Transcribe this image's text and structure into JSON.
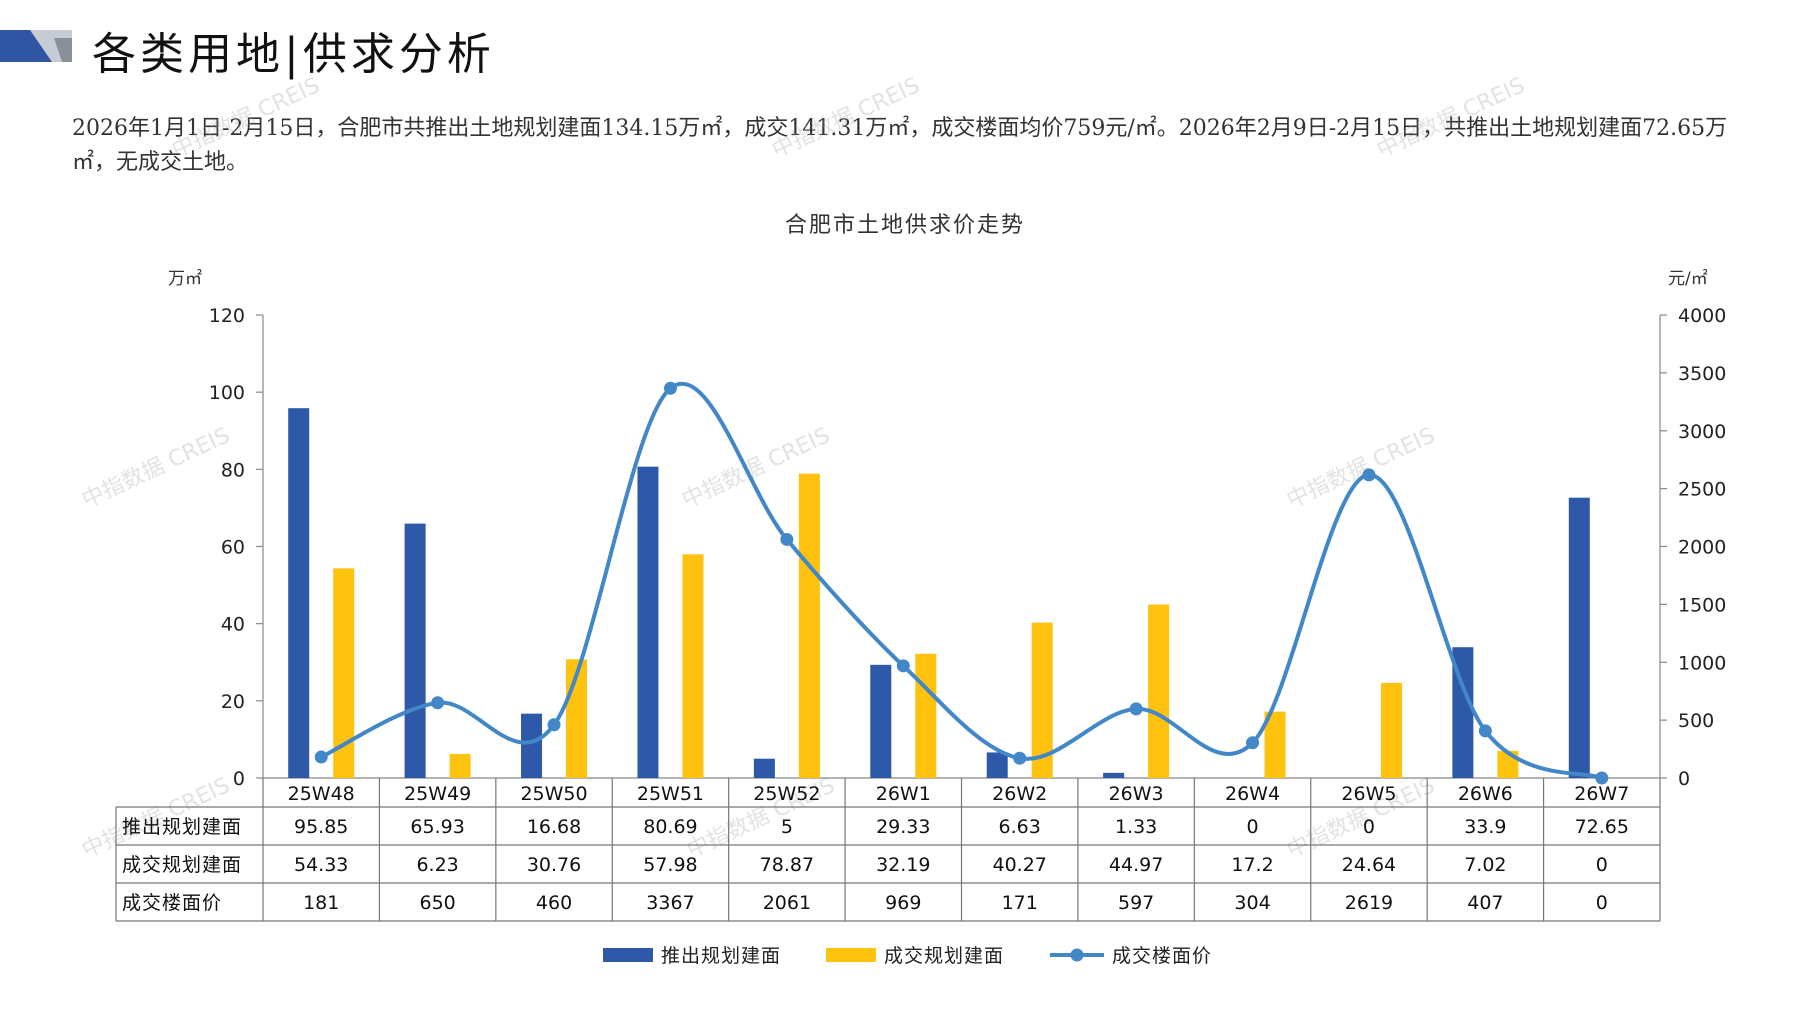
{
  "header": {
    "title": "各类用地|供求分析",
    "accent_color": "#2f55a4",
    "secondary_color": "#c7cbd3"
  },
  "summary": "2026年1月1日-2月15日，合肥市共推出土地规划建面134.15万㎡，成交141.31万㎡，成交楼面均价759元/㎡。2026年2月9日-2月15日，共推出土地规划建面72.65万㎡，无成交土地。",
  "watermark": "中指数据 CREIS",
  "chart_data": {
    "type": "bar",
    "title": "合肥市土地供求价走势",
    "y_left_unit": "万㎡",
    "y_right_unit": "元/㎡",
    "y_left_range": [
      0,
      120
    ],
    "y_left_ticks": [
      "0",
      "20",
      "40",
      "60",
      "80",
      "100",
      "120"
    ],
    "y_right_range": [
      0,
      4000
    ],
    "y_right_ticks": [
      "0",
      "500",
      "1000",
      "1500",
      "2000",
      "2500",
      "3000",
      "3500",
      "4000"
    ],
    "categories": [
      "25W48",
      "25W49",
      "25W50",
      "25W51",
      "25W52",
      "26W1",
      "26W2",
      "26W3",
      "26W4",
      "26W5",
      "26W6",
      "26W7"
    ],
    "series": [
      {
        "name": "推出规划建面",
        "kind": "bar",
        "axis": "left",
        "color": "#2e58a8",
        "values": [
          95.85,
          65.93,
          16.68,
          80.69,
          5,
          29.33,
          6.63,
          1.33,
          0,
          0,
          33.9,
          72.65
        ],
        "labels": [
          "95.85",
          "65.93",
          "16.68",
          "80.69",
          "5",
          "29.33",
          "6.63",
          "1.33",
          "0",
          "0",
          "33.9",
          "72.65"
        ]
      },
      {
        "name": "成交规划建面",
        "kind": "bar",
        "axis": "left",
        "color": "#ffc20e",
        "values": [
          54.33,
          6.23,
          30.76,
          57.98,
          78.87,
          32.19,
          40.27,
          44.97,
          17.2,
          24.64,
          7.02,
          0
        ],
        "labels": [
          "54.33",
          "6.23",
          "30.76",
          "57.98",
          "78.87",
          "32.19",
          "40.27",
          "44.97",
          "17.2",
          "24.64",
          "7.02",
          "0"
        ]
      },
      {
        "name": "成交楼面价",
        "kind": "line",
        "axis": "right",
        "color": "#4287c8",
        "values": [
          181,
          650,
          460,
          3367,
          2061,
          969,
          171,
          597,
          304,
          2619,
          407,
          0
        ],
        "labels": [
          "181",
          "650",
          "460",
          "3367",
          "2061",
          "969",
          "171",
          "597",
          "304",
          "2619",
          "407",
          "0"
        ]
      }
    ],
    "legend_position": "bottom",
    "grid": false
  }
}
